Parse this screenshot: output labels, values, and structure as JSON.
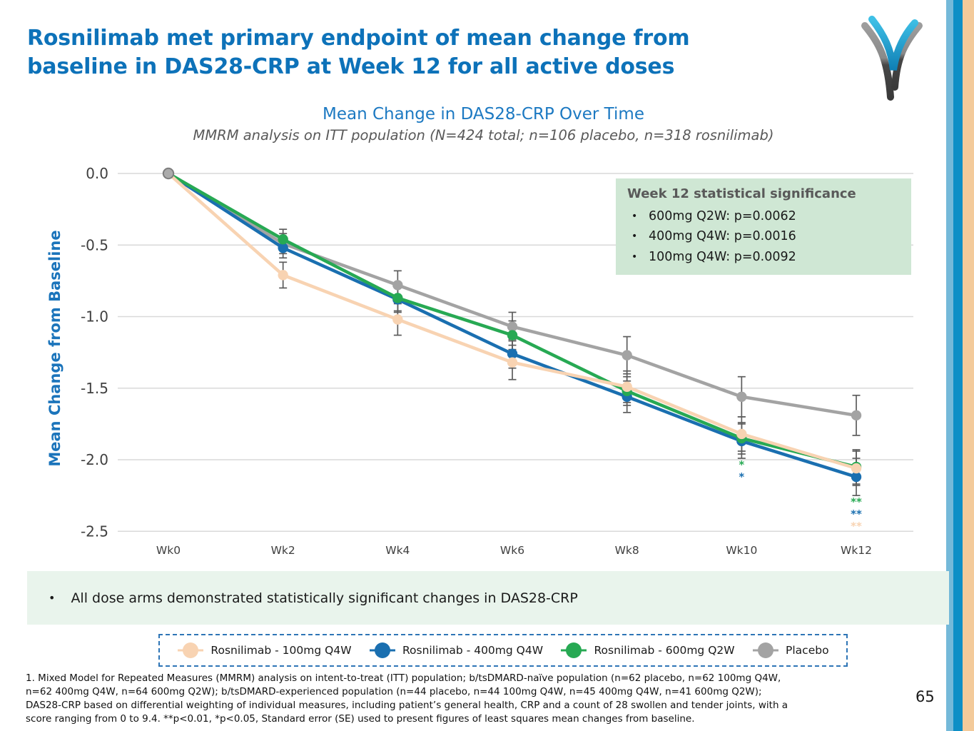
{
  "slide": {
    "title_line1": "Rosnilimab met primary endpoint of mean change from",
    "title_line2": "baseline in DAS28-CRP at Week 12 for all active doses",
    "takeaway_bullet": "•",
    "takeaway": "All dose arms demonstrated statistically significant changes in DAS28-CRP",
    "page_number": "65"
  },
  "stat_box": {
    "title": "Week 12 statistical significance",
    "items": [
      "600mg Q2W: p=0.0062",
      "400mg Q4W: p=0.0016",
      "100mg Q4W: p=0.0092"
    ]
  },
  "footnote": {
    "lines": [
      "1. Mixed Model for Repeated Measures (MMRM) analysis on intent-to-treat (ITT) population; b/tsDMARD-naïve population (n=62 placebo, n=62 100mg Q4W,",
      "n=62 400mg Q4W, n=64 600mg Q2W); b/tsDMARD-experienced population (n=44 placebo, n=44 100mg Q4W, n=45 400mg Q4W, n=41 600mg Q2W);",
      "DAS28-CRP based on differential weighting of individual measures, including patient’s general health, CRP and a count of 28 swollen and tender joints, with a",
      "score ranging from 0 to 9.4.  **p<0.01, *p<0.05, Standard error (SE) used to present figures of least squares mean changes from baseline."
    ]
  },
  "colors": {
    "title_blue": "#0d72b9",
    "chart_title_blue": "#1c79c2",
    "axis_title_blue": "#1b74bb",
    "gridline": "#d9d9d9",
    "error_bar": "#5c5c5c",
    "stat_box_bg": "#cfe7d4",
    "takeaway_bg": "#e9f4ec",
    "legend_border": "#2e75b6",
    "stripe_light_blue": "#74b9d9",
    "stripe_dark_blue": "#0d8fc6",
    "stripe_peach": "#f3ca9a"
  },
  "chart_data": {
    "type": "line",
    "title": "Mean Change in DAS28-CRP Over Time",
    "subtitle": "MMRM analysis on ITT population (N=424 total; n=106 placebo, n=318 rosnilimab)",
    "ylabel": "Mean Change from Baseline",
    "xlabel": "",
    "x_categories": [
      "Wk0",
      "Wk2",
      "Wk4",
      "Wk6",
      "Wk8",
      "Wk10",
      "Wk12"
    ],
    "y_ticks": [
      0.0,
      -0.5,
      -1.0,
      -1.5,
      -2.0,
      -2.5
    ],
    "ylim": [
      -2.5,
      0.0
    ],
    "grid": true,
    "legend_position": "bottom",
    "error_bars": "SE",
    "series": [
      {
        "name": "Rosnilimab - 100mg Q4W",
        "color": "#f8d3b2",
        "values": [
          0.0,
          -0.71,
          -1.02,
          -1.32,
          -1.49,
          -1.82,
          -2.06
        ],
        "se": [
          0.0,
          0.09,
          0.11,
          0.12,
          0.11,
          0.12,
          0.12
        ]
      },
      {
        "name": "Rosnilimab - 400mg Q4W",
        "color": "#1a6fb0",
        "values": [
          0.0,
          -0.52,
          -0.88,
          -1.26,
          -1.56,
          -1.87,
          -2.12
        ],
        "se": [
          0.0,
          0.07,
          0.09,
          0.1,
          0.11,
          0.12,
          0.13
        ]
      },
      {
        "name": "Rosnilimab - 600mg Q2W",
        "color": "#27a953",
        "values": [
          0.0,
          -0.46,
          -0.87,
          -1.13,
          -1.52,
          -1.85,
          -2.05
        ],
        "se": [
          0.0,
          0.07,
          0.09,
          0.1,
          0.1,
          0.11,
          0.12
        ]
      },
      {
        "name": "Placebo",
        "color": "#a3a3a3",
        "values": [
          0.0,
          -0.49,
          -0.78,
          -1.07,
          -1.27,
          -1.56,
          -1.69
        ],
        "se": [
          0.0,
          0.07,
          0.1,
          0.1,
          0.13,
          0.14,
          0.14
        ]
      }
    ],
    "annotations": [
      {
        "x": "Wk10",
        "items": [
          {
            "text": "*",
            "color": "#27a953"
          },
          {
            "text": "*",
            "color": "#1a6fb0"
          }
        ]
      },
      {
        "x": "Wk12",
        "items": [
          {
            "text": "**",
            "color": "#27a953"
          },
          {
            "text": "**",
            "color": "#1a6fb0"
          },
          {
            "text": "**",
            "color": "#f8d3b2"
          }
        ]
      }
    ]
  }
}
